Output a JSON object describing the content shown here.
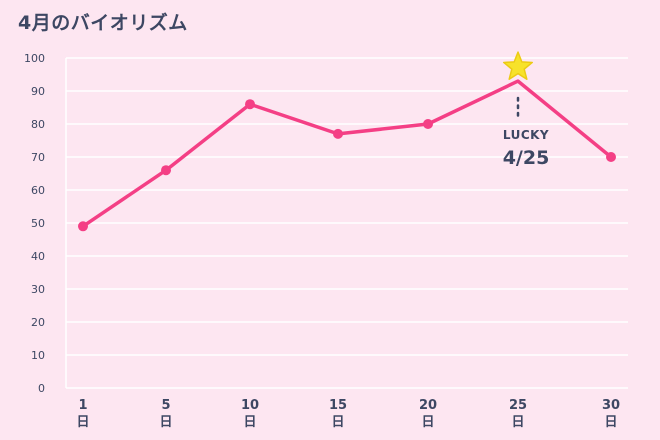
{
  "chart_data": {
    "type": "line",
    "title": "4月のバイオリズム",
    "x": [
      1,
      5,
      10,
      15,
      20,
      25,
      30
    ],
    "x_unit": "日",
    "values": [
      49,
      66,
      86,
      77,
      80,
      93,
      70
    ],
    "ylim": [
      0,
      100
    ],
    "y_ticks": [
      0,
      10,
      20,
      30,
      40,
      50,
      60,
      70,
      80,
      90,
      100
    ],
    "grid": true,
    "line_color": "#f43f85",
    "background_color": "#fde6f1",
    "annotation": {
      "x": 25,
      "icon": "star-icon",
      "icon_color": "#f7e22a",
      "label": "LUCKY",
      "date": "4/25"
    }
  }
}
